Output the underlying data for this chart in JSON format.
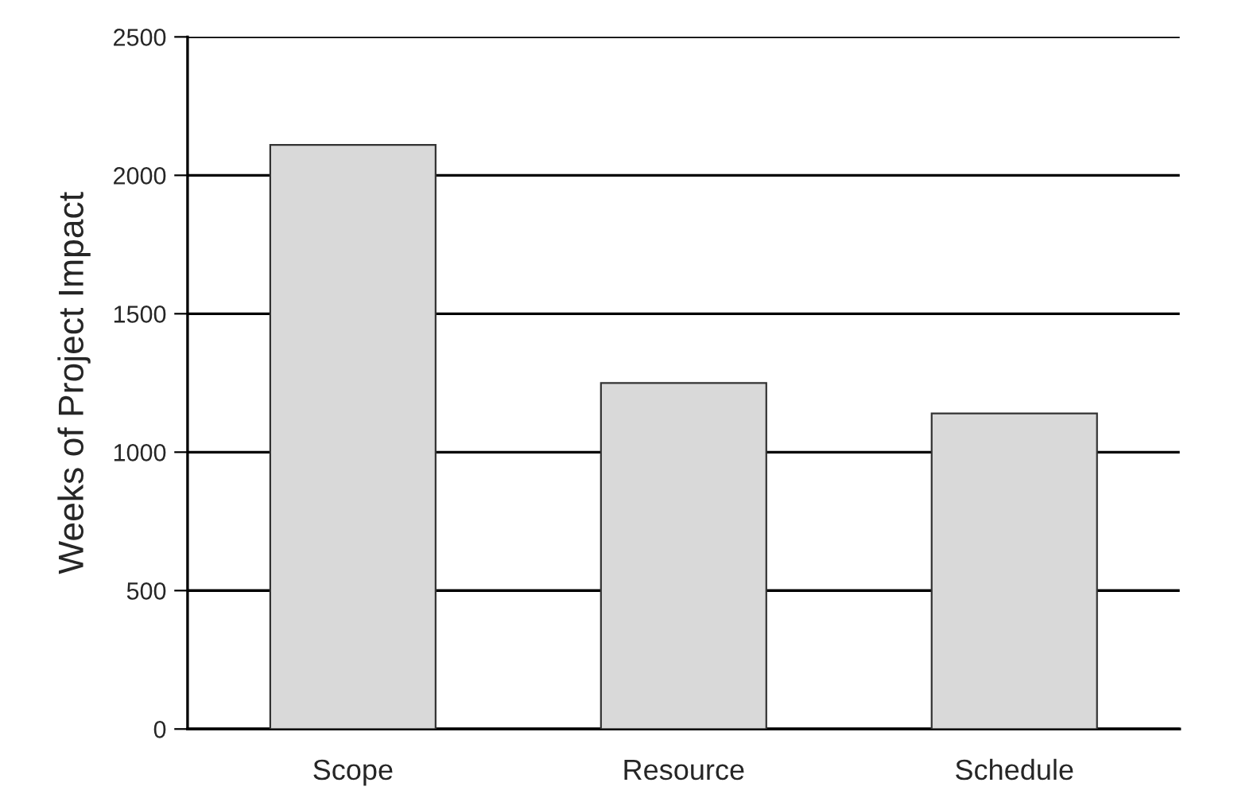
{
  "chart_data": {
    "type": "bar",
    "ylabel": "Weeks of Project Impact",
    "categories": [
      "Scope",
      "Resource",
      "Schedule"
    ],
    "values": [
      2110,
      1250,
      1140
    ],
    "color": "#d9d9d9",
    "ylim": [
      0,
      2500
    ],
    "yticks": [
      0,
      500,
      1000,
      1500,
      2000,
      2500
    ],
    "grid": "y"
  }
}
